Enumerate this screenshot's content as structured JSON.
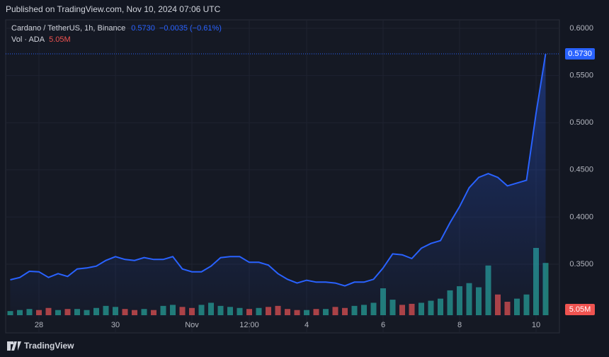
{
  "header": {
    "published": "Published on TradingView.com, Nov 10, 2024 07:06 UTC"
  },
  "footer": {
    "brand": "TradingView"
  },
  "chart_data": {
    "type": "line",
    "title": "Cardano / TetherUS, 1h, Binance",
    "change": "−0.0035 (−0.61%)",
    "last_value": {
      "value": 0.573,
      "label": "0.5730"
    },
    "categories": [
      null,
      null,
      null,
      "28",
      null,
      null,
      null,
      null,
      null,
      null,
      null,
      "30",
      null,
      null,
      null,
      null,
      null,
      null,
      null,
      "Nov",
      null,
      null,
      null,
      null,
      null,
      "12:00",
      null,
      null,
      null,
      null,
      null,
      "4",
      null,
      null,
      null,
      null,
      null,
      null,
      null,
      "6",
      null,
      null,
      null,
      null,
      null,
      null,
      null,
      "8",
      null,
      null,
      null,
      null,
      null,
      null,
      null,
      "10",
      null
    ],
    "series": [
      {
        "name": "Cardano / TetherUS",
        "color": "#2962ff",
        "values": [
          0.3335,
          0.336,
          0.3425,
          0.342,
          0.336,
          0.34,
          0.337,
          0.345,
          0.346,
          0.348,
          0.354,
          0.358,
          0.355,
          0.354,
          0.357,
          0.355,
          0.355,
          0.358,
          0.345,
          0.342,
          0.342,
          0.348,
          0.357,
          0.358,
          0.358,
          0.352,
          0.352,
          0.349,
          0.34,
          0.334,
          0.33,
          0.333,
          0.331,
          0.331,
          0.33,
          0.327,
          0.331,
          0.331,
          0.334,
          0.346,
          0.361,
          0.36,
          0.356,
          0.367,
          0.372,
          0.375,
          0.394,
          0.411,
          0.431,
          0.442,
          0.446,
          0.442,
          0.433,
          0.436,
          0.439,
          0.51,
          0.573
        ]
      }
    ],
    "volume": {
      "name": "Vol · ADA",
      "up_color": "#26a69a",
      "down_color": "#ef5350",
      "values": [
        0.4,
        0.5,
        0.6,
        0.5,
        0.7,
        0.5,
        0.6,
        0.6,
        0.5,
        0.7,
        0.9,
        0.8,
        0.6,
        0.5,
        0.6,
        0.5,
        0.9,
        1.0,
        0.8,
        0.7,
        1.0,
        1.2,
        0.9,
        0.8,
        0.7,
        0.6,
        0.7,
        0.8,
        0.9,
        0.6,
        0.5,
        0.5,
        0.6,
        0.6,
        0.8,
        0.7,
        0.9,
        1.0,
        1.2,
        2.6,
        1.5,
        1.0,
        1.1,
        1.2,
        1.4,
        1.6,
        2.4,
        2.8,
        3.1,
        2.7,
        4.8,
        2.0,
        1.3,
        1.6,
        2.0,
        6.5,
        5.05
      ],
      "last_label": "5.05M"
    },
    "ylim": [
      0.2937,
      0.609
    ],
    "yticks": [
      {
        "value": 0.35,
        "label": "0.3500"
      },
      {
        "value": 0.4,
        "label": "0.4000"
      },
      {
        "value": 0.45,
        "label": "0.4500"
      },
      {
        "value": 0.5,
        "label": "0.5000"
      },
      {
        "value": 0.55,
        "label": "0.5500"
      },
      {
        "value": 0.6,
        "label": "0.6000"
      }
    ],
    "grid": true
  }
}
